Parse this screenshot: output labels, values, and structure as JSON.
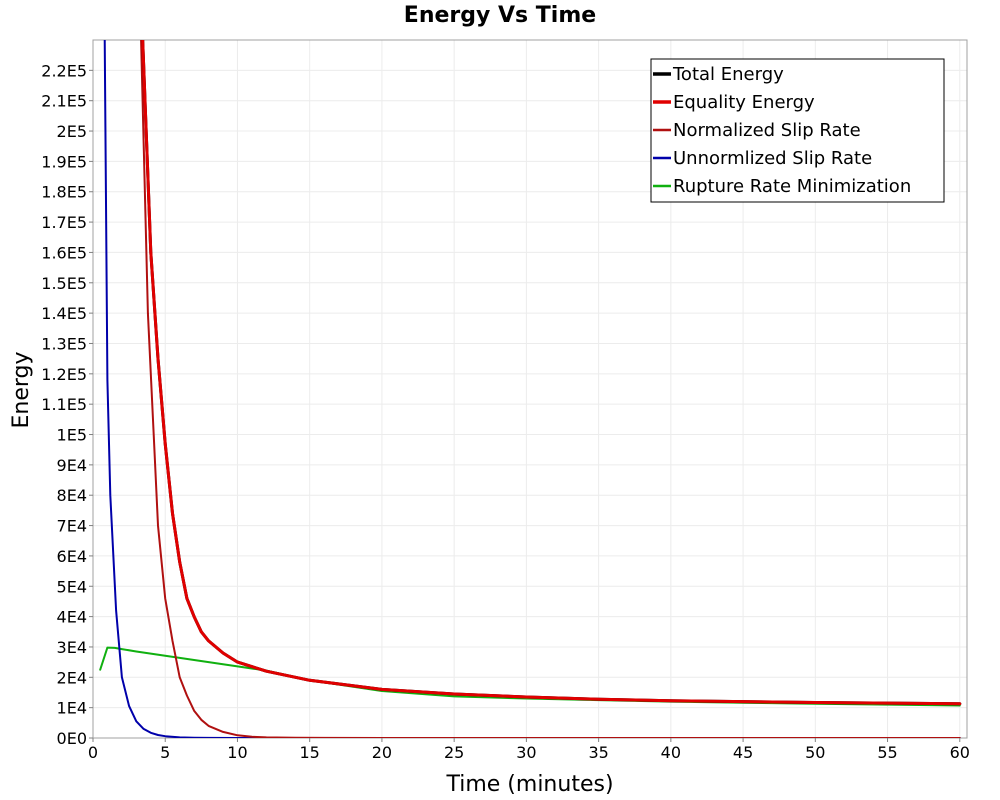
{
  "chart_data": {
    "type": "line",
    "title": "Energy Vs Time",
    "xlabel": "Time (minutes)",
    "ylabel": "Energy",
    "xlim": [
      0,
      60.5
    ],
    "ylim": [
      0,
      230000
    ],
    "grid": true,
    "legend_position": "top-right",
    "x_ticks": [
      0,
      5,
      10,
      15,
      20,
      25,
      30,
      35,
      40,
      45,
      50,
      55,
      60
    ],
    "x_tick_labels": [
      "0",
      "5",
      "10",
      "15",
      "20",
      "25",
      "30",
      "35",
      "40",
      "45",
      "50",
      "55",
      "60"
    ],
    "y_ticks": [
      0,
      10000,
      20000,
      30000,
      40000,
      50000,
      60000,
      70000,
      80000,
      90000,
      100000,
      110000,
      120000,
      130000,
      140000,
      150000,
      160000,
      170000,
      180000,
      190000,
      200000,
      210000,
      220000
    ],
    "y_tick_labels": [
      "0E0",
      "1E4",
      "2E4",
      "3E4",
      "4E4",
      "5E4",
      "6E4",
      "7E4",
      "8E4",
      "9E4",
      "1E5",
      "1.1E5",
      "1.2E5",
      "1.3E5",
      "1.4E5",
      "1.5E5",
      "1.6E5",
      "1.7E5",
      "1.8E5",
      "1.9E5",
      "2E5",
      "2.1E5",
      "2.2E5"
    ],
    "series": [
      {
        "name": "Total Energy",
        "color": "#000000",
        "width": 3,
        "x": [
          3.4,
          4,
          4.5,
          5,
          5.5,
          6,
          6.5,
          7,
          7.5,
          8,
          9,
          10,
          12,
          15,
          20,
          25,
          30,
          35,
          40,
          45,
          50,
          55,
          60
        ],
        "y": [
          235000,
          160000,
          125000,
          97000,
          74000,
          58000,
          46000,
          40000,
          35000,
          32000,
          28000,
          25000,
          22000,
          19000,
          16000,
          14500,
          13500,
          12800,
          12300,
          12000,
          11700,
          11500,
          11300
        ]
      },
      {
        "name": "Equality Energy",
        "color": "#e00000",
        "width": 3,
        "x": [
          3.4,
          4,
          4.5,
          5,
          5.5,
          6,
          6.5,
          7,
          7.5,
          8,
          9,
          10,
          12,
          15,
          20,
          25,
          30,
          35,
          40,
          45,
          50,
          55,
          60
        ],
        "y": [
          235000,
          160000,
          125000,
          97000,
          74000,
          58000,
          46000,
          40000,
          35000,
          32000,
          28000,
          25000,
          22000,
          19000,
          16000,
          14500,
          13500,
          12800,
          12300,
          12000,
          11700,
          11500,
          11300
        ]
      },
      {
        "name": "Normalized Slip Rate",
        "color": "#b01010",
        "width": 2,
        "x": [
          3.3,
          3.8,
          4.2,
          4.5,
          5,
          5.5,
          6,
          6.5,
          7,
          7.5,
          8,
          9,
          10,
          11,
          12,
          14,
          16,
          20,
          30,
          40,
          50,
          60
        ],
        "y": [
          235000,
          140000,
          100000,
          70000,
          46000,
          32000,
          20000,
          14000,
          9000,
          6000,
          4000,
          2000,
          900,
          400,
          200,
          80,
          30,
          10,
          0,
          0,
          0,
          0
        ]
      },
      {
        "name": "Unnormlized Slip Rate",
        "color": "#0000aa",
        "width": 2,
        "x": [
          0.8,
          1,
          1.2,
          1.6,
          2,
          2.5,
          3,
          3.5,
          4,
          4.5,
          5,
          6,
          7,
          8,
          10,
          12,
          15,
          20,
          30,
          40,
          50,
          60
        ],
        "y": [
          235000,
          118000,
          80000,
          42000,
          20000,
          10500,
          5500,
          3000,
          1700,
          1000,
          600,
          200,
          80,
          30,
          10,
          0,
          0,
          0,
          0,
          0,
          0,
          0
        ]
      },
      {
        "name": "Rupture Rate Minimization",
        "color": "#10b010",
        "width": 2,
        "x": [
          0.5,
          1,
          1.5,
          2,
          3,
          4,
          5,
          6,
          7,
          8,
          9,
          10,
          12,
          15,
          20,
          25,
          30,
          35,
          40,
          45,
          50,
          55,
          60
        ],
        "y": [
          22500,
          29800,
          29700,
          29300,
          28500,
          27800,
          27100,
          26400,
          25700,
          25000,
          24300,
          23600,
          22200,
          19000,
          15500,
          13700,
          13000,
          12500,
          12000,
          11600,
          11300,
          11000,
          10700
        ]
      }
    ]
  }
}
